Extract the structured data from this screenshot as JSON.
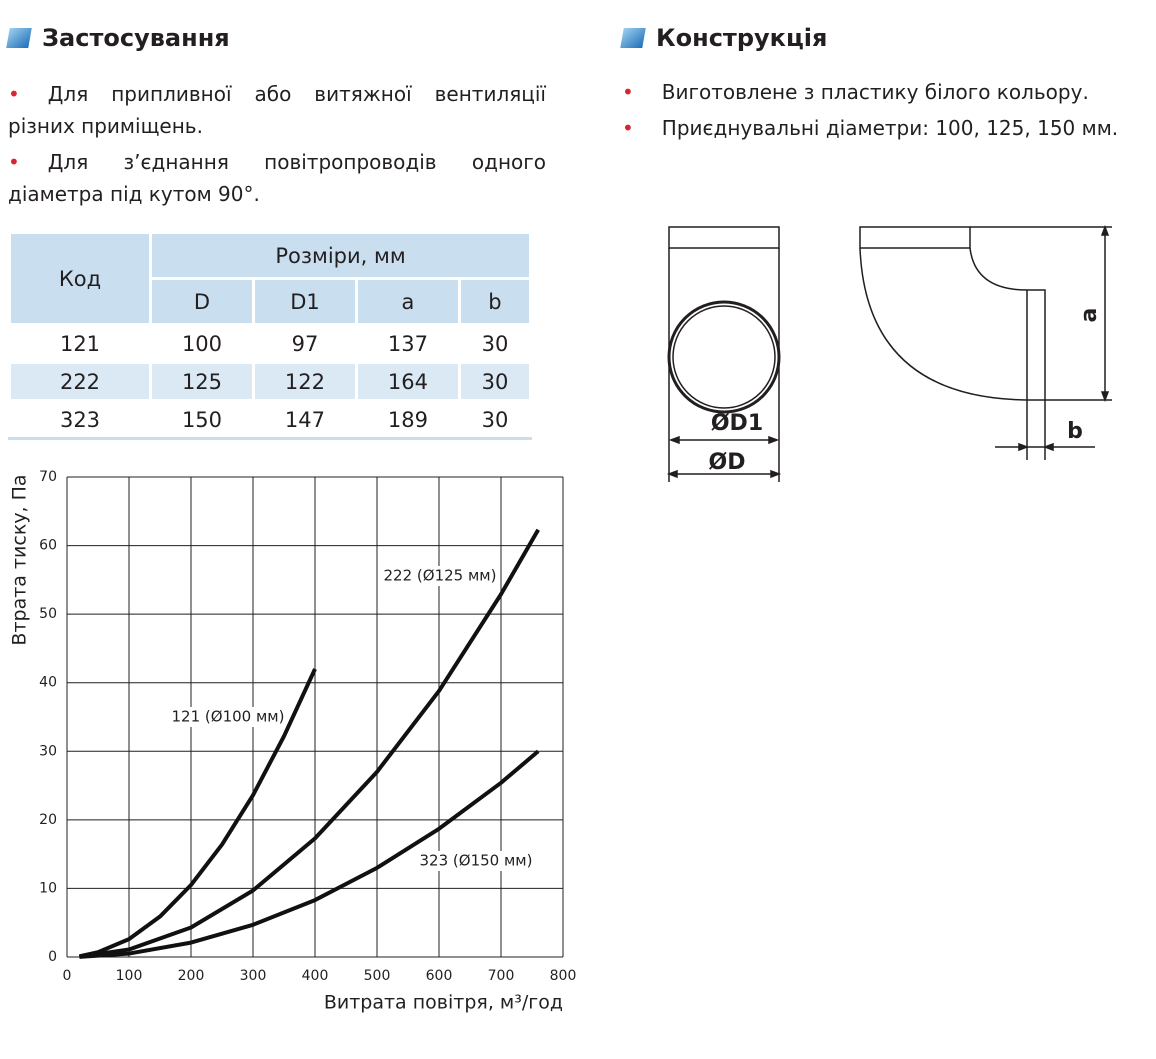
{
  "left": {
    "title": "Застосування",
    "bullets": [
      "Для припливної або витяжної вентиляції різних приміщень.",
      "Для з’єднання повітропроводів одного діаметра під кутом 90°."
    ]
  },
  "right": {
    "title": "Конструкція",
    "bullets": [
      "Виготовлене з пластику білого кольору.",
      "Приєднувальні діаметри: 100, 125, 150 мм."
    ]
  },
  "table": {
    "code_header": "Код",
    "group_header": "Розміри, мм",
    "columns": [
      "D",
      "D1",
      "a",
      "b"
    ],
    "rows": [
      [
        "121",
        "100",
        "97",
        "137",
        "30"
      ],
      [
        "222",
        "125",
        "122",
        "164",
        "30"
      ],
      [
        "323",
        "150",
        "147",
        "189",
        "30"
      ]
    ]
  },
  "diagram": {
    "labels": [
      "ØD1",
      "ØD",
      "a",
      "b"
    ]
  },
  "chart_data": {
    "type": "line",
    "x_label": "Витрата повітря, м³/год",
    "y_label": "Втрата тиску, Па",
    "x": [
      20,
      100,
      200,
      300,
      400,
      500,
      600,
      700,
      760
    ],
    "series": [
      {
        "name": "121 (Ø100 мм)",
        "color": "#111111",
        "x": [
          20,
          50,
          100,
          150,
          200,
          250,
          300,
          350,
          400
        ],
        "values": [
          0.1,
          0.7,
          2.6,
          5.9,
          10.5,
          16.4,
          23.6,
          32.2,
          42
        ]
      },
      {
        "name": "222 (Ø125 мм)",
        "color": "#111111",
        "values": [
          0.04,
          1.1,
          4.3,
          9.7,
          17.3,
          27,
          38.8,
          52.9,
          62.3
        ]
      },
      {
        "name": "323 (Ø150 мм)",
        "color": "#111111",
        "values": [
          0.02,
          0.5,
          2.1,
          4.7,
          8.3,
          13,
          18.7,
          25.4,
          30
        ]
      }
    ],
    "xlim": [
      0,
      800
    ],
    "ylim": [
      0,
      70
    ],
    "xticks": [
      0,
      100,
      200,
      300,
      400,
      500,
      600,
      700,
      800
    ],
    "yticks": [
      0,
      10,
      20,
      30,
      40,
      50,
      60,
      70
    ],
    "grid": true
  }
}
